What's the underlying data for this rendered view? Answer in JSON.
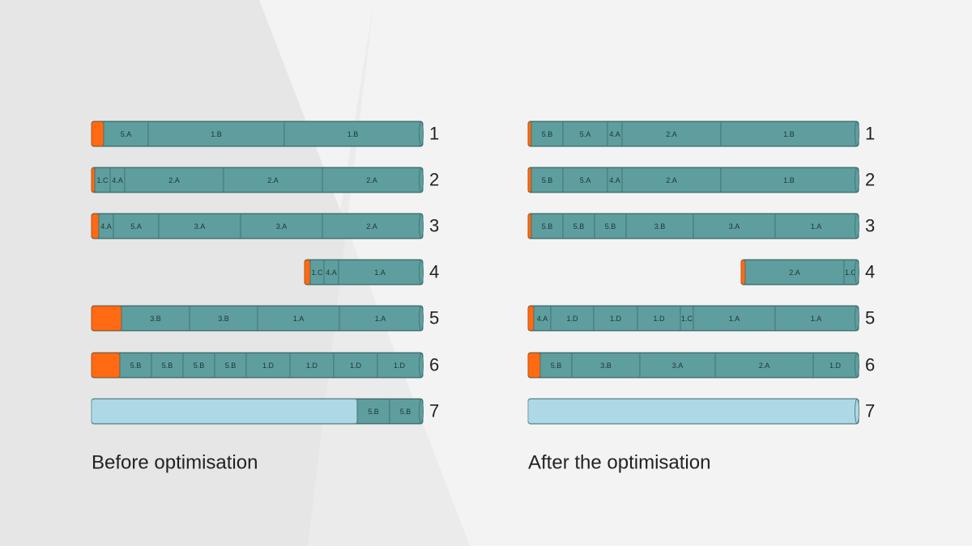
{
  "panels": [
    {
      "caption": "Before optimisation",
      "rows": [
        {
          "number": "1",
          "segments": [
            "5.A",
            "1.B",
            "1.B"
          ]
        },
        {
          "number": "2",
          "segments": [
            "1.C",
            "4.A",
            "2.A",
            "2.A",
            "2.A"
          ]
        },
        {
          "number": "3",
          "segments": [
            "4.A",
            "5.A",
            "3.A",
            "3.A",
            "2.A"
          ]
        },
        {
          "number": "4",
          "segments": [
            "1.C",
            "4.A",
            "1.A"
          ]
        },
        {
          "number": "5",
          "segments": [
            "3.B",
            "3.B",
            "1.A",
            "1.A"
          ]
        },
        {
          "number": "6",
          "segments": [
            "5.B",
            "5.B",
            "5.B",
            "5.B",
            "1.D",
            "1.D",
            "1.D",
            "1.D"
          ]
        },
        {
          "number": "7",
          "segments": [
            "5.B",
            "5.B"
          ]
        }
      ]
    },
    {
      "caption": "After the optimisation",
      "rows": [
        {
          "number": "1",
          "segments": [
            "5.B",
            "5.A",
            "4.A",
            "2.A",
            "1.B"
          ]
        },
        {
          "number": "2",
          "segments": [
            "5.B",
            "5.A",
            "4.A",
            "2.A",
            "1.B"
          ]
        },
        {
          "number": "3",
          "segments": [
            "5.B",
            "5.B",
            "5.B",
            "3.B",
            "3.A",
            "1.A"
          ]
        },
        {
          "number": "4",
          "segments": [
            "2.A",
            "1.C"
          ]
        },
        {
          "number": "5",
          "segments": [
            "4.A",
            "1.D",
            "1.D",
            "1.D",
            "1.C",
            "1.A",
            "1.A"
          ]
        },
        {
          "number": "6",
          "segments": [
            "5.B",
            "3.B",
            "3.A",
            "2.A",
            "1.D"
          ]
        },
        {
          "number": "7",
          "segments": []
        }
      ]
    }
  ]
}
